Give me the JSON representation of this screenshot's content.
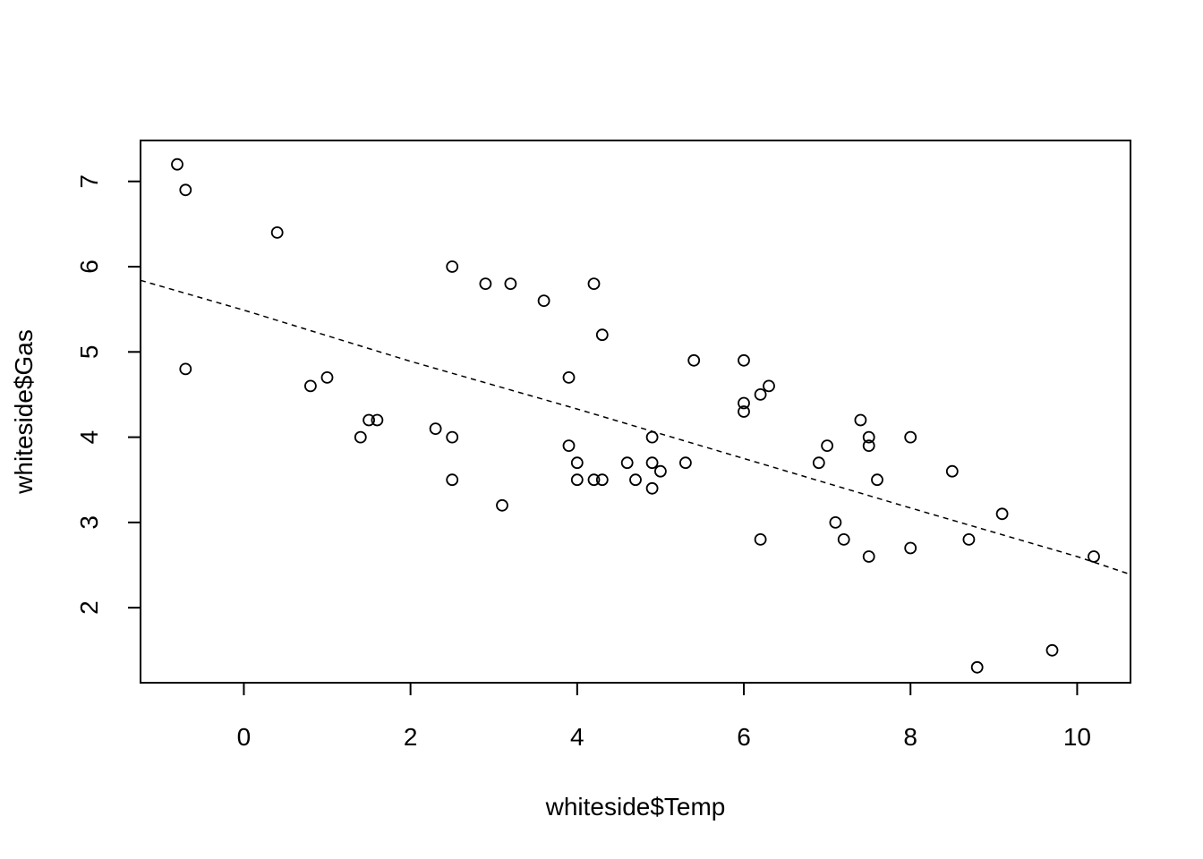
{
  "chart_data": {
    "type": "scatter",
    "xlabel": "whiteside$Temp",
    "ylabel": "whiteside$Gas",
    "xlim": [
      -1.24,
      10.64
    ],
    "ylim": [
      1.12,
      7.48
    ],
    "xticks": [
      0,
      2,
      4,
      6,
      8,
      10
    ],
    "yticks": [
      2,
      3,
      4,
      5,
      6,
      7
    ],
    "grid": false,
    "legend": "none",
    "points": [
      [
        -0.8,
        7.2
      ],
      [
        -0.7,
        6.9
      ],
      [
        -0.7,
        4.8
      ],
      [
        0.4,
        6.4
      ],
      [
        0.8,
        4.6
      ],
      [
        1.0,
        4.7
      ],
      [
        1.4,
        4.0
      ],
      [
        1.5,
        4.2
      ],
      [
        1.6,
        4.2
      ],
      [
        2.3,
        4.1
      ],
      [
        2.5,
        6.0
      ],
      [
        2.5,
        4.0
      ],
      [
        2.5,
        3.5
      ],
      [
        2.9,
        5.8
      ],
      [
        3.1,
        3.2
      ],
      [
        3.2,
        5.8
      ],
      [
        3.6,
        5.6
      ],
      [
        3.9,
        4.7
      ],
      [
        3.9,
        3.9
      ],
      [
        4.0,
        3.7
      ],
      [
        4.0,
        3.5
      ],
      [
        4.2,
        5.8
      ],
      [
        4.2,
        3.5
      ],
      [
        4.3,
        5.2
      ],
      [
        4.3,
        3.5
      ],
      [
        4.6,
        3.7
      ],
      [
        4.7,
        3.5
      ],
      [
        4.9,
        4.0
      ],
      [
        4.9,
        3.7
      ],
      [
        4.9,
        3.4
      ],
      [
        5.0,
        3.6
      ],
      [
        5.3,
        3.7
      ],
      [
        5.4,
        4.9
      ],
      [
        6.0,
        4.9
      ],
      [
        6.0,
        4.4
      ],
      [
        6.0,
        4.3
      ],
      [
        6.2,
        4.5
      ],
      [
        6.2,
        2.8
      ],
      [
        6.3,
        4.6
      ],
      [
        6.9,
        3.7
      ],
      [
        7.0,
        3.9
      ],
      [
        7.1,
        3.0
      ],
      [
        7.2,
        2.8
      ],
      [
        7.4,
        4.2
      ],
      [
        7.5,
        4.0
      ],
      [
        7.5,
        3.9
      ],
      [
        7.5,
        2.6
      ],
      [
        7.6,
        3.5
      ],
      [
        8.0,
        4.0
      ],
      [
        8.0,
        2.7
      ],
      [
        8.5,
        3.6
      ],
      [
        8.7,
        2.8
      ],
      [
        8.8,
        1.3
      ],
      [
        9.1,
        3.1
      ],
      [
        9.7,
        1.5
      ],
      [
        10.2,
        2.6
      ]
    ],
    "fit_line": {
      "style": "dashed",
      "x": [
        -1.24,
        0,
        2,
        4,
        6,
        8,
        10,
        10.64
      ],
      "y": [
        5.84,
        5.49,
        4.89,
        4.33,
        3.75,
        3.17,
        2.6,
        2.39
      ]
    }
  }
}
